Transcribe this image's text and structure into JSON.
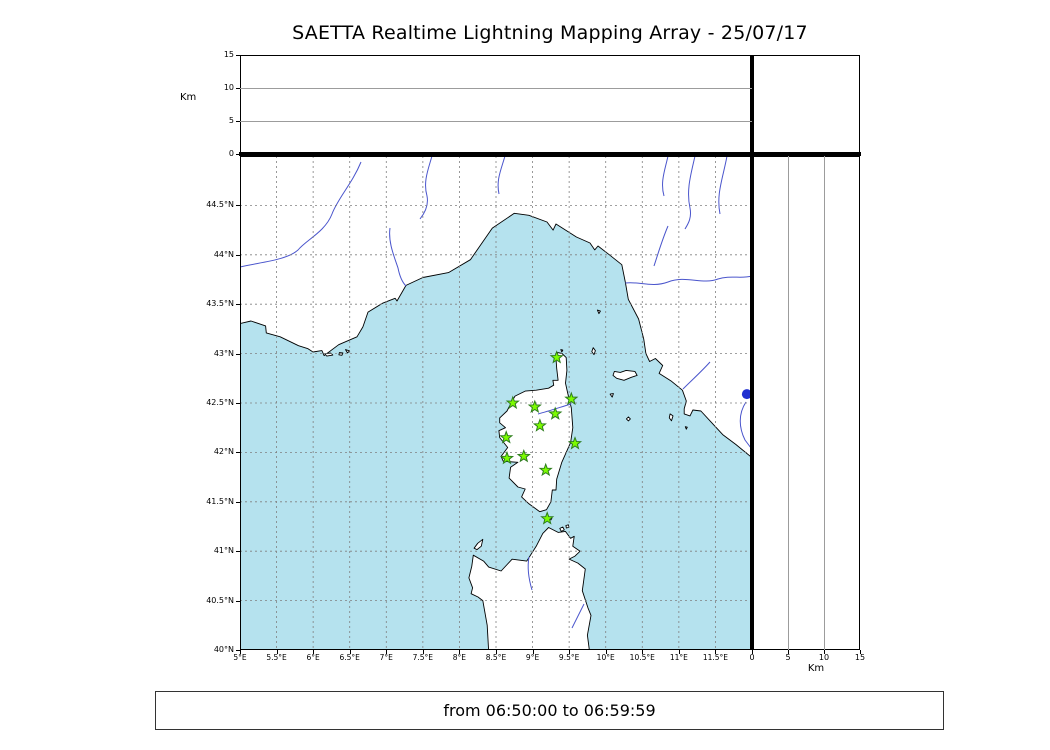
{
  "title": "SAETTA Realtime Lightning Mapping Array - 25/07/17",
  "footer": {
    "text": "from 06:50:00 to 06:59:59"
  },
  "altitude_axis": {
    "label": "Km",
    "min": 0,
    "max": 15,
    "ticks": [
      0,
      5,
      10,
      15
    ]
  },
  "map": {
    "lon_min": 5,
    "lon_max": 12,
    "lat_min": 40,
    "lat_max": 45,
    "grid_step": 0.5,
    "lon_tick_values": [
      5,
      5.5,
      6,
      6.5,
      7,
      7.5,
      8,
      8.5,
      9,
      9.5,
      10,
      10.5,
      11,
      11.5
    ],
    "lon_tick_labels": [
      "5°E",
      "5.5°E",
      "6°E",
      "6.5°E",
      "7°E",
      "7.5°E",
      "8°E",
      "8.5°E",
      "9°E",
      "9.5°E",
      "10°E",
      "10.5°E",
      "11°E",
      "11.5°E"
    ],
    "lat_tick_values": [
      40,
      40.5,
      41,
      41.5,
      42,
      42.5,
      43,
      43.5,
      44,
      44.5
    ],
    "lat_tick_labels": [
      "40°N",
      "40.5°N",
      "41°N",
      "41.5°N",
      "42°N",
      "42.5°N",
      "43°N",
      "43.5°N",
      "44°N",
      "44.5°N"
    ],
    "colors": {
      "sea": "#b5e2ee",
      "land": "#ffffff",
      "coast": "#000000",
      "river": "#4a55cc",
      "grid": "#808080",
      "station_fill": "#7cfc00",
      "station_edge": "#2e7d1e",
      "lake": "#2030d0"
    },
    "stations": [
      [
        9.33,
        42.96
      ],
      [
        8.73,
        42.5
      ],
      [
        9.03,
        42.46
      ],
      [
        9.53,
        42.54
      ],
      [
        9.31,
        42.39
      ],
      [
        9.1,
        42.27
      ],
      [
        8.64,
        42.15
      ],
      [
        9.58,
        42.09
      ],
      [
        8.65,
        41.94
      ],
      [
        8.88,
        41.96
      ],
      [
        9.18,
        41.82
      ],
      [
        9.2,
        41.33
      ]
    ],
    "lake_position": [
      11.93,
      42.59
    ]
  }
}
